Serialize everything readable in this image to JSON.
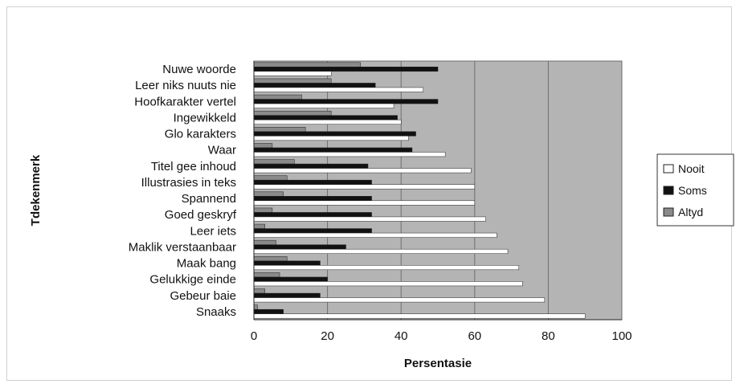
{
  "chart_data": {
    "type": "bar",
    "orientation": "horizontal",
    "title": "",
    "xlabel": "Persentasie",
    "ylabel": "Tdekenmerk",
    "xlim": [
      0,
      100
    ],
    "x_ticks": [
      "0",
      "20",
      "40",
      "60",
      "80",
      "100"
    ],
    "grid": "vertical gridlines at 20, 40, 60, 80",
    "plot_background": "#b4b4b4",
    "legend_position": "right",
    "categories": [
      "Nuwe woorde",
      "Leer niks nuuts nie",
      "Hoofkarakter vertel",
      "Ingewikkeld",
      "Glo karakters",
      "Waar",
      "Titel gee inhoud",
      "Illustrasies in teks",
      "Spannend",
      "Goed geskryf",
      "Leer iets",
      "Maklik  verstaanbaar",
      "Maak bang",
      "Gelukkige einde",
      "Gebeur baie",
      "Snaaks"
    ],
    "series": [
      {
        "name": "Altyd",
        "color": "#8a8a8a",
        "values": [
          29,
          21,
          13,
          21,
          14,
          5,
          11,
          9,
          8,
          5,
          3,
          6,
          9,
          7,
          3,
          1
        ]
      },
      {
        "name": "Soms",
        "color": "#111111",
        "values": [
          50,
          33,
          50,
          39,
          44,
          43,
          31,
          32,
          32,
          32,
          32,
          25,
          18,
          20,
          18,
          8
        ]
      },
      {
        "name": "Nooit",
        "color": "#ffffff",
        "values": [
          21,
          46,
          38,
          40,
          42,
          52,
          59,
          60,
          60,
          63,
          66,
          69,
          72,
          73,
          79,
          90
        ]
      }
    ],
    "legend": [
      {
        "label": "Nooit",
        "color": "#ffffff"
      },
      {
        "label": "Soms",
        "color": "#111111"
      },
      {
        "label": "Altyd",
        "color": "#8a8a8a"
      }
    ]
  }
}
